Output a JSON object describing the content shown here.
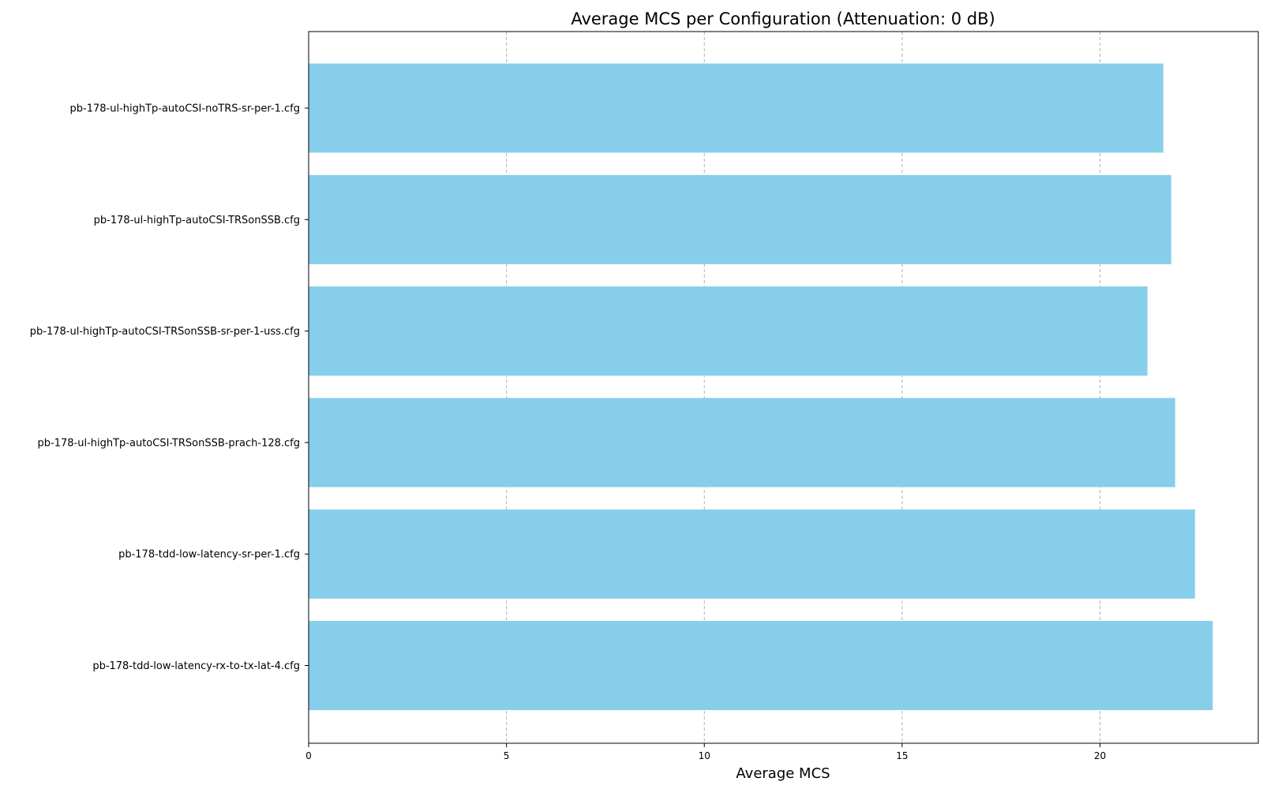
{
  "chart_data": {
    "type": "bar",
    "orientation": "horizontal",
    "title": "Average MCS per Configuration (Attenuation: 0 dB)",
    "xlabel": "Average MCS",
    "ylabel": "",
    "categories": [
      "pb-178-ul-highTp-autoCSI-noTRS-sr-per-1.cfg",
      "pb-178-ul-highTp-autoCSI-TRSonSSB.cfg",
      "pb-178-ul-highTp-autoCSI-TRSonSSB-sr-per-1-uss.cfg",
      "pb-178-ul-highTp-autoCSI-TRSonSSB-prach-128.cfg",
      "pb-178-tdd-low-latency-sr-per-1.cfg",
      "pb-178-tdd-low-latency-rx-to-tx-lat-4.cfg"
    ],
    "values": [
      21.6,
      21.8,
      21.2,
      21.9,
      22.4,
      22.85
    ],
    "xlim": [
      0,
      24
    ],
    "xticks": [
      0,
      5,
      10,
      15,
      20
    ],
    "xtick_labels": [
      "0",
      "5",
      "10",
      "15",
      "20"
    ],
    "grid": "x-dashed",
    "bar_color": "#87CEEB",
    "grid_color": "#b0b0b0"
  }
}
